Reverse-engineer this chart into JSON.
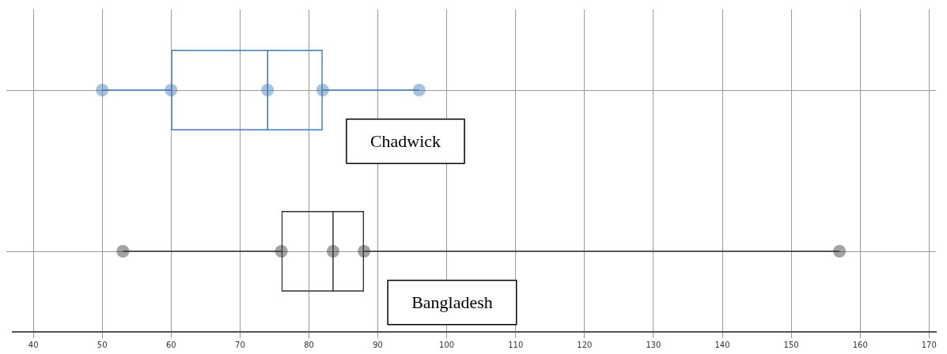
{
  "chart_data": {
    "type": "box",
    "orientation": "horizontal",
    "categories": [
      "Chadwick",
      "Bangladesh"
    ],
    "boxes": [
      {
        "low": 50,
        "q1": 60,
        "median": 74,
        "q3": 82,
        "high": 96
      },
      {
        "low": 53,
        "q1": 76,
        "median": 83.5,
        "q3": 88,
        "high": 157
      }
    ],
    "colors": [
      "#3d7ab8",
      "#333333"
    ],
    "series": [
      {
        "type": "scatter",
        "color": "#3d7ab8",
        "x": [
          "Chadwick",
          "Chadwick",
          "Chadwick",
          "Chadwick",
          "Chadwick"
        ],
        "values": [
          50,
          60,
          74,
          82,
          96
        ]
      },
      {
        "type": "scatter",
        "color": "#333333",
        "x": [
          "Bangladesh",
          "Bangladesh",
          "Bangladesh",
          "Bangladesh",
          "Bangladesh"
        ],
        "values": [
          53,
          76,
          83.5,
          88,
          157
        ]
      }
    ],
    "xlim": [
      37,
      171
    ],
    "xticks": [
      40,
      50,
      60,
      70,
      80,
      90,
      100,
      110,
      120,
      130,
      140,
      150,
      160,
      170
    ],
    "grid": true,
    "marker": "circle",
    "tick_labels": "x"
  }
}
